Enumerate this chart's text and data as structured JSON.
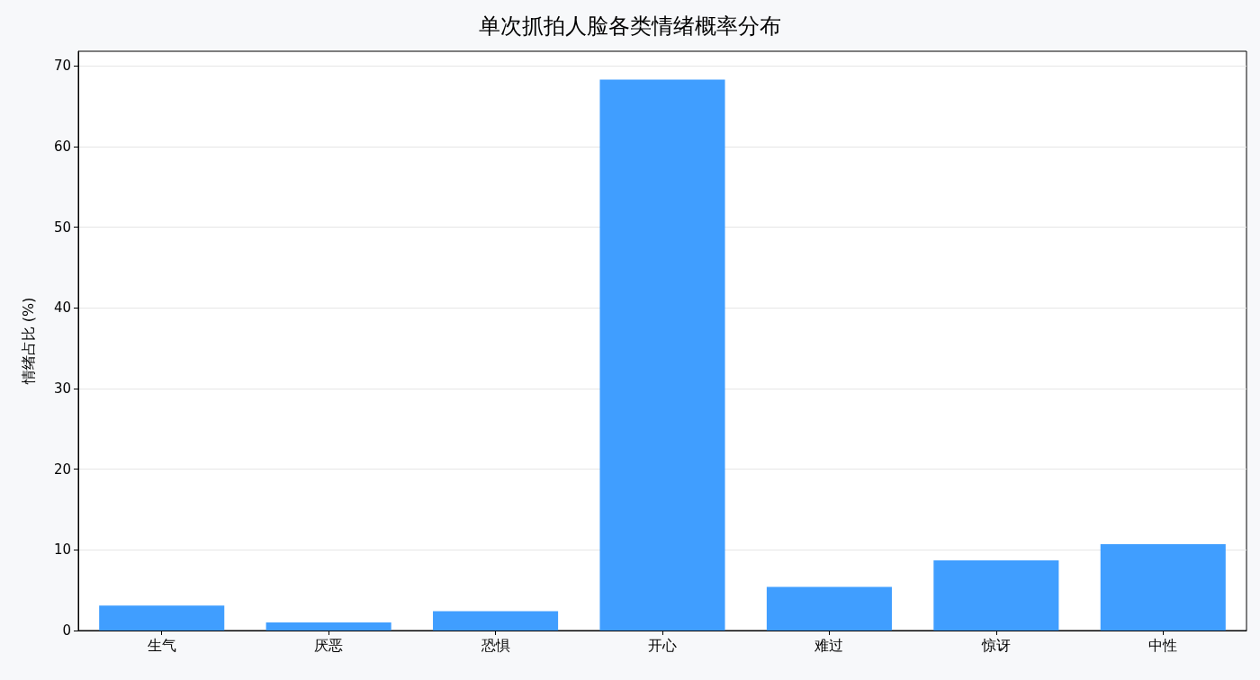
{
  "chart_data": {
    "type": "bar",
    "title": "单次抓拍人脸各类情绪概率分布",
    "ylabel": "情绪占比 (%)",
    "categories": [
      "生气",
      "厌恶",
      "恐惧",
      "开心",
      "难过",
      "惊讶",
      "中性"
    ],
    "values": [
      3.1,
      1.0,
      2.4,
      68.3,
      5.4,
      8.7,
      10.7
    ],
    "color": "#409eff",
    "ylim": [
      0,
      71.8
    ],
    "yticks": [
      0,
      10,
      20,
      30,
      40,
      50,
      60,
      70
    ],
    "grid": "y"
  }
}
